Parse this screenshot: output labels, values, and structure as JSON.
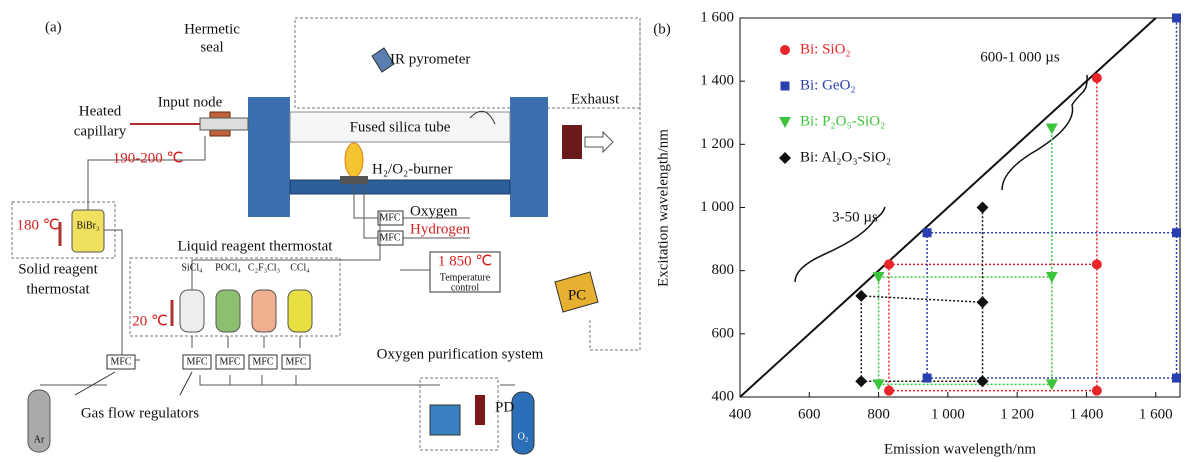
{
  "panel_a": {
    "panel_label": "(a)",
    "hermetic_seal": [
      "Hermetic",
      "seal"
    ],
    "ir_pyrometer": "IR pyrometer",
    "heated_capillary": [
      "Heated",
      "capillary"
    ],
    "input_node": "Input node",
    "capillary_temp": "190-200 ℃",
    "tube": "Fused silica tube",
    "exhaust": "Exhaust",
    "burner": "H₂/O₂-burner",
    "oxygen": "Oxygen",
    "hydrogen": "Hydrogen",
    "mfc_boxes": [
      "MFC",
      "MFC",
      "MFC",
      "MFC",
      "MFC",
      "MFC",
      "MFC"
    ],
    "solid_temp": "180 ℃",
    "solid_reagent": "BiBr₃",
    "solid_thermostat": [
      "Solid reagent",
      "thermostat"
    ],
    "liquid_thermostat": "Liquid reagent thermostat",
    "liquid_reagents": [
      "SiCl₄",
      "POCl₄",
      "C₂F₃Cl₃",
      "CCl₄"
    ],
    "liquid_temp": "20 ℃",
    "burner_temp": "1 850 ℃",
    "temp_control": [
      "Temperature",
      "control"
    ],
    "pc": "PC",
    "oxygen_purification": "Oxygen purification system",
    "argon": "Ar",
    "gas_flow_regulators": "Gas flow regulators",
    "pd": "PD",
    "o2_cylinder": "O₂"
  },
  "chart_data": {
    "type": "scatter",
    "panel_label": "(b)",
    "x_label": "Emission wavelength/nm",
    "y_label": "Excitation wavelength/nm",
    "xlim": [
      400,
      1670
    ],
    "ylim": [
      400,
      1600
    ],
    "xticks": [
      400,
      600,
      800,
      {
        "value": 1000,
        "label": "1 000"
      },
      {
        "value": 1200,
        "label": "1 200"
      },
      {
        "value": 1400,
        "label": "1 400"
      },
      {
        "value": 1600,
        "label": "1 600"
      }
    ],
    "yticks": [
      400,
      600,
      800,
      {
        "value": 1000,
        "label": "1 000"
      },
      {
        "value": 1200,
        "label": "1 200"
      },
      {
        "value": 1400,
        "label": "1 400"
      },
      {
        "value": 1600,
        "label": "1 600"
      }
    ],
    "annotations": [
      "600-1 000 µs",
      "3-50 µs"
    ],
    "series": [
      {
        "name": "Bi: SiO₂",
        "color": "#e8262a",
        "marker": "circle",
        "x": [
          830,
          1430,
          1430,
          830,
          1430
        ],
        "values": [
          820,
          820,
          1410,
          420,
          420
        ]
      },
      {
        "name": "Bi: GeO₂",
        "color": "#2a3fae",
        "marker": "square",
        "x": [
          940,
          1660,
          1660,
          940,
          1660
        ],
        "values": [
          920,
          920,
          1600,
          460,
          460
        ]
      },
      {
        "name": "Bi: P₂O₅-SiO₂",
        "color": "#3cc43c",
        "marker": "triangle",
        "x": [
          800,
          1300,
          1300,
          800,
          1300
        ],
        "values": [
          780,
          780,
          1250,
          440,
          440
        ]
      },
      {
        "name": "Bi: Al₂O₃-SiO₂",
        "color": "#111111",
        "marker": "diamond",
        "x": [
          750,
          1100,
          1100,
          750,
          1100
        ],
        "values": [
          720,
          700,
          1000,
          450,
          450
        ]
      }
    ]
  }
}
